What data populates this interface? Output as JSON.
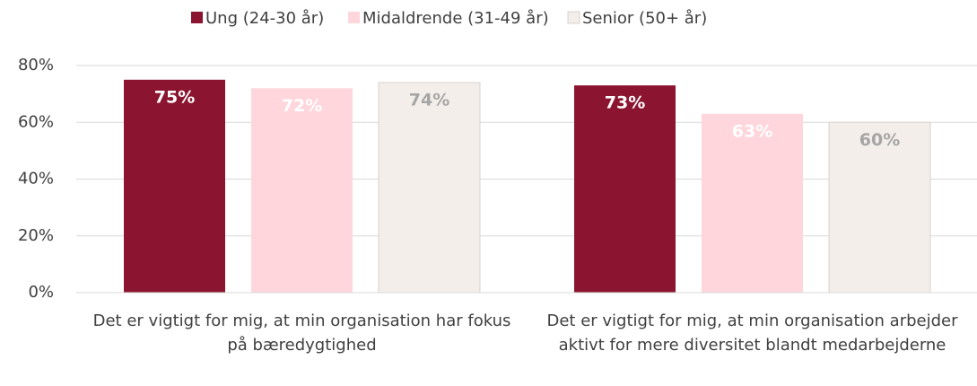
{
  "chart_data": {
    "type": "bar",
    "categories": [
      "Det er vigtigt for mig, at min organisation har fokus på bæredygtighed",
      "Det er vigtigt for mig, at min organisation arbejder aktivt for mere diversitet blandt medarbejderne"
    ],
    "series": [
      {
        "name": "Ung (24-30 år)",
        "color": "#8b1530",
        "label_color": "#ffffff",
        "values": [
          75,
          73
        ],
        "value_labels": [
          "75%",
          "73%"
        ]
      },
      {
        "name": "Midaldrende (31-49 år)",
        "color": "#ffd6dc",
        "label_color": "#ffffff",
        "values": [
          72,
          63
        ],
        "value_labels": [
          "72%",
          "63%"
        ]
      },
      {
        "name": "Senior (50+ år)",
        "color": "#f3eeea",
        "label_color": "#a6a6a6",
        "values": [
          74,
          60
        ],
        "value_labels": [
          "74%",
          "60%"
        ]
      }
    ],
    "ylim": [
      0,
      80
    ],
    "yticks": [
      {
        "value": 0,
        "label": "0%"
      },
      {
        "value": 20,
        "label": "20%"
      },
      {
        "value": 40,
        "label": "40%"
      },
      {
        "value": 60,
        "label": "60%"
      },
      {
        "value": 80,
        "label": "80%"
      }
    ],
    "grid": true,
    "legend": "top"
  }
}
